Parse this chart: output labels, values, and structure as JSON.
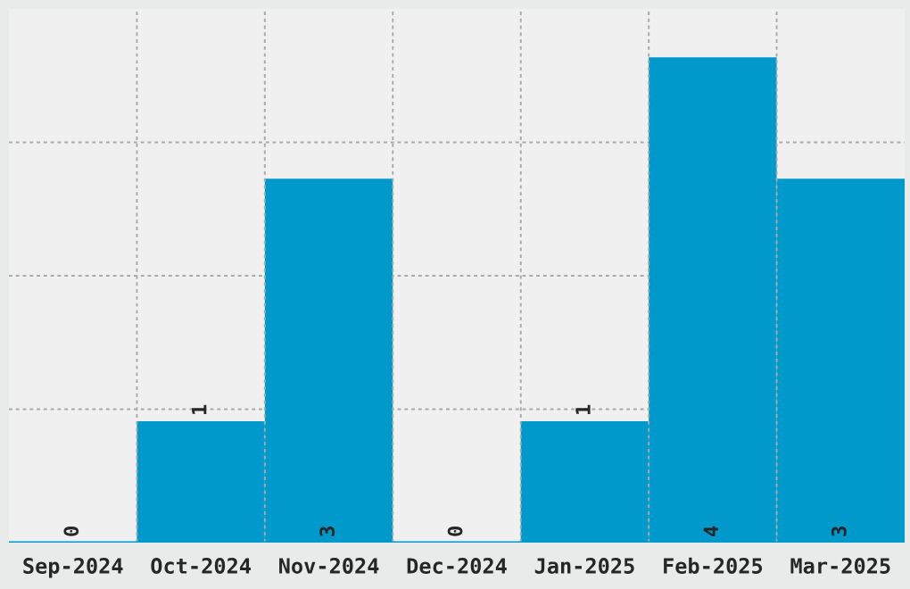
{
  "chart_data": {
    "type": "bar",
    "categories": [
      "Sep-2024",
      "Oct-2024",
      "Nov-2024",
      "Dec-2024",
      "Jan-2025",
      "Feb-2025",
      "Mar-2025"
    ],
    "values": [
      0,
      1,
      3,
      0,
      1,
      4,
      3
    ],
    "color": "#0099cc",
    "ylim": [
      0,
      4.4
    ],
    "yticks": [
      {
        "value": 1.1,
        "label": null
      },
      {
        "value": 2.2,
        "label": null
      },
      {
        "value": 3.3,
        "label": null
      }
    ],
    "tick_labels": "x",
    "grid": true,
    "data_labels": true
  }
}
